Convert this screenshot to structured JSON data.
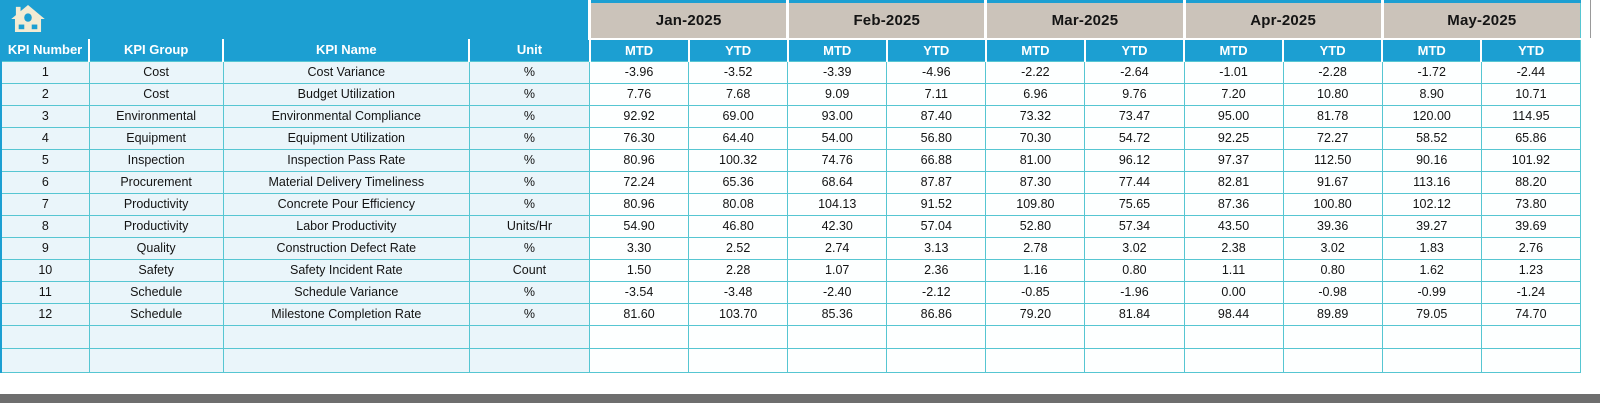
{
  "colors": {
    "accent": "#1C9FD2",
    "month_header_bg": "#CBC3BA",
    "grid_line": "#56C6D2",
    "left_cell_bg": "#EAF5FA",
    "value_cell_bg": "#FDFFFF",
    "bottom_bar": "#6E6E6E",
    "home_icon_fill": "#F3EBD3"
  },
  "header": {
    "home_icon": "home",
    "months": [
      "Jan-2025",
      "Feb-2025",
      "Mar-2025",
      "Apr-2025",
      "May-2025"
    ],
    "sub_headers": [
      "MTD",
      "YTD"
    ],
    "columns": [
      "KPI Number",
      "KPI Group",
      "KPI Name",
      "Unit"
    ]
  },
  "table": {
    "empty_row_count": 2,
    "rows": [
      {
        "number": "1",
        "group": "Cost",
        "name": "Cost Variance",
        "unit": "%",
        "values": [
          "-3.96",
          "-3.52",
          "-3.39",
          "-4.96",
          "-2.22",
          "-2.64",
          "-1.01",
          "-2.28",
          "-1.72",
          "-2.44"
        ]
      },
      {
        "number": "2",
        "group": "Cost",
        "name": "Budget Utilization",
        "unit": "%",
        "values": [
          "7.76",
          "7.68",
          "9.09",
          "7.11",
          "6.96",
          "9.76",
          "7.20",
          "10.80",
          "8.90",
          "10.71"
        ]
      },
      {
        "number": "3",
        "group": "Environmental",
        "name": "Environmental Compliance",
        "unit": "%",
        "values": [
          "92.92",
          "69.00",
          "93.00",
          "87.40",
          "73.32",
          "73.47",
          "95.00",
          "81.78",
          "120.00",
          "114.95"
        ]
      },
      {
        "number": "4",
        "group": "Equipment",
        "name": "Equipment Utilization",
        "unit": "%",
        "values": [
          "76.30",
          "64.40",
          "54.00",
          "56.80",
          "70.30",
          "54.72",
          "92.25",
          "72.27",
          "58.52",
          "65.86"
        ]
      },
      {
        "number": "5",
        "group": "Inspection",
        "name": "Inspection Pass Rate",
        "unit": "%",
        "values": [
          "80.96",
          "100.32",
          "74.76",
          "66.88",
          "81.00",
          "96.12",
          "97.37",
          "112.50",
          "90.16",
          "101.92"
        ]
      },
      {
        "number": "6",
        "group": "Procurement",
        "name": "Material Delivery Timeliness",
        "unit": "%",
        "values": [
          "72.24",
          "65.36",
          "68.64",
          "87.87",
          "87.30",
          "77.44",
          "82.81",
          "91.67",
          "113.16",
          "88.20"
        ]
      },
      {
        "number": "7",
        "group": "Productivity",
        "name": "Concrete Pour Efficiency",
        "unit": "%",
        "values": [
          "80.96",
          "80.08",
          "104.13",
          "91.52",
          "109.80",
          "75.65",
          "87.36",
          "100.80",
          "102.12",
          "73.80"
        ]
      },
      {
        "number": "8",
        "group": "Productivity",
        "name": "Labor Productivity",
        "unit": "Units/Hr",
        "values": [
          "54.90",
          "46.80",
          "42.30",
          "57.04",
          "52.80",
          "57.34",
          "43.50",
          "39.36",
          "39.27",
          "39.69"
        ]
      },
      {
        "number": "9",
        "group": "Quality",
        "name": "Construction Defect Rate",
        "unit": "%",
        "values": [
          "3.30",
          "2.52",
          "2.74",
          "3.13",
          "2.78",
          "3.02",
          "2.38",
          "3.02",
          "1.83",
          "2.76"
        ]
      },
      {
        "number": "10",
        "group": "Safety",
        "name": "Safety Incident Rate",
        "unit": "Count",
        "values": [
          "1.50",
          "2.28",
          "1.07",
          "2.36",
          "1.16",
          "0.80",
          "1.11",
          "0.80",
          "1.62",
          "1.23"
        ]
      },
      {
        "number": "11",
        "group": "Schedule",
        "name": "Schedule Variance",
        "unit": "%",
        "values": [
          "-3.54",
          "-3.48",
          "-2.40",
          "-2.12",
          "-0.85",
          "-1.96",
          "0.00",
          "-0.98",
          "-0.99",
          "-1.24"
        ]
      },
      {
        "number": "12",
        "group": "Schedule",
        "name": "Milestone Completion Rate",
        "unit": "%",
        "values": [
          "81.60",
          "103.70",
          "85.36",
          "86.86",
          "79.20",
          "81.84",
          "98.44",
          "89.89",
          "79.05",
          "74.70"
        ]
      }
    ]
  }
}
